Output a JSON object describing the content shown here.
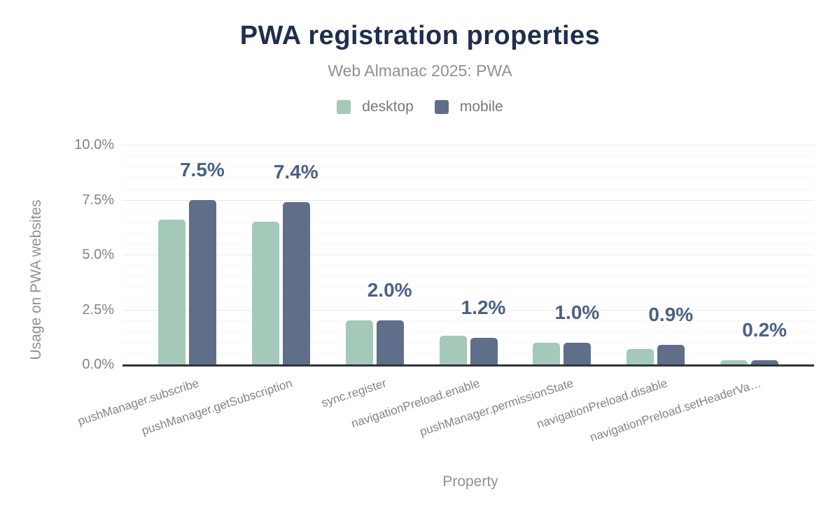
{
  "chart_data": {
    "type": "bar",
    "title": "PWA registration properties",
    "subtitle": "Web Almanac 2025: PWA",
    "xlabel": "Property",
    "ylabel": "Usage on PWA websites",
    "ylim": [
      0,
      10
    ],
    "grid": true,
    "legend_position": "top",
    "y_ticks": [
      "0.0%",
      "2.5%",
      "5.0%",
      "7.5%",
      "10.0%"
    ],
    "y_tick_values": [
      0,
      2.5,
      5,
      7.5,
      10
    ],
    "categories": [
      "pushManager.subscribe",
      "pushManager.getSubscription",
      "sync.register",
      "navigationPreload.enable",
      "pushManager.permissionState",
      "navigationPreload.disable",
      "navigationPreload.setHeaderVa…"
    ],
    "series": [
      {
        "name": "desktop",
        "color": "#a4c9b8",
        "values": [
          6.6,
          6.5,
          2.0,
          1.3,
          1.0,
          0.7,
          0.2
        ]
      },
      {
        "name": "mobile",
        "color": "#5f6f8a",
        "values": [
          7.5,
          7.4,
          2.0,
          1.2,
          1.0,
          0.9,
          0.2
        ]
      }
    ],
    "data_labels": [
      "7.5%",
      "7.4%",
      "2.0%",
      "1.2%",
      "1.0%",
      "0.9%",
      "0.2%"
    ]
  },
  "colors": {
    "title": "#1f2e4d",
    "subtitle_text": "#8e9194",
    "legend_text": "#75787c",
    "tick_text": "#808386",
    "data_label": "#4c6088",
    "desktop": "#a4c9b8",
    "mobile": "#5f6f8a",
    "axis_line": "#2f3338",
    "grid_major": "#e8e8e8",
    "grid_minor": "#f6f6f6"
  }
}
